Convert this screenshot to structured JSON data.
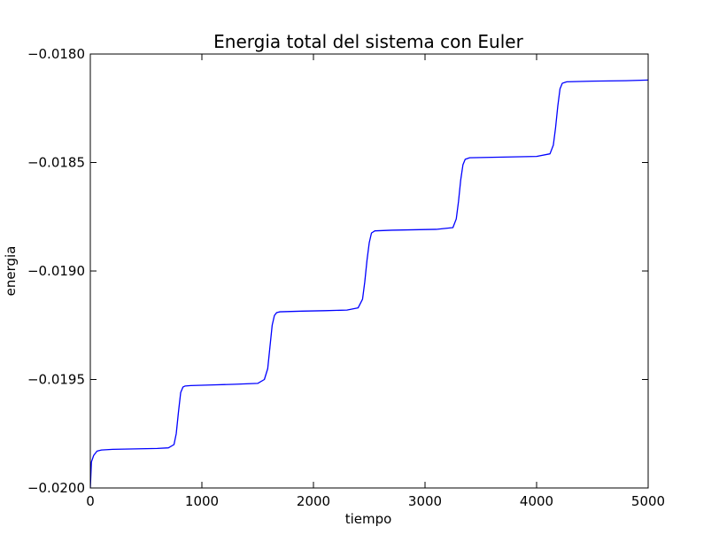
{
  "chart_data": {
    "type": "line",
    "title": "Energia total del sistema con Euler",
    "xlabel": "tiempo",
    "ylabel": "energia",
    "xlim": [
      0,
      5000
    ],
    "ylim": [
      -0.02,
      -0.018
    ],
    "x_ticks": [
      0,
      1000,
      2000,
      3000,
      4000,
      5000
    ],
    "x_tick_labels": [
      "0",
      "1000",
      "2000",
      "3000",
      "4000",
      "5000"
    ],
    "y_ticks": [
      -0.02,
      -0.0195,
      -0.019,
      -0.0185,
      -0.018
    ],
    "y_tick_labels": [
      "−0.0200",
      "−0.0195",
      "−0.0190",
      "−0.0185",
      "−0.0180"
    ],
    "grid": false,
    "series": [
      {
        "color": "#0000ff",
        "x": [
          0,
          10,
          30,
          60,
          100,
          200,
          400,
          600,
          700,
          750,
          770,
          790,
          810,
          830,
          850,
          900,
          1100,
          1300,
          1500,
          1560,
          1590,
          1610,
          1630,
          1650,
          1670,
          1700,
          1900,
          2100,
          2300,
          2400,
          2440,
          2460,
          2480,
          2500,
          2520,
          2550,
          2700,
          2900,
          3100,
          3250,
          3280,
          3300,
          3320,
          3340,
          3360,
          3400,
          3600,
          3800,
          4000,
          4120,
          4150,
          4170,
          4190,
          4210,
          4230,
          4270,
          4500,
          4800,
          5000
        ],
        "y": [
          -0.02,
          -0.01988,
          -0.01985,
          -0.01983,
          -0.019825,
          -0.019822,
          -0.01982,
          -0.019818,
          -0.019815,
          -0.0198,
          -0.01975,
          -0.01965,
          -0.01956,
          -0.019535,
          -0.01953,
          -0.019528,
          -0.019525,
          -0.019522,
          -0.019518,
          -0.0195,
          -0.01945,
          -0.01935,
          -0.01925,
          -0.019205,
          -0.019192,
          -0.019188,
          -0.019185,
          -0.019183,
          -0.01918,
          -0.01917,
          -0.01913,
          -0.01905,
          -0.01895,
          -0.01887,
          -0.018825,
          -0.018815,
          -0.018812,
          -0.01881,
          -0.018808,
          -0.0188,
          -0.01876,
          -0.01868,
          -0.01858,
          -0.01851,
          -0.018485,
          -0.018478,
          -0.018476,
          -0.018474,
          -0.018472,
          -0.01846,
          -0.01842,
          -0.01834,
          -0.01824,
          -0.01816,
          -0.018135,
          -0.018128,
          -0.018125,
          -0.018123,
          -0.01812
        ]
      }
    ]
  }
}
